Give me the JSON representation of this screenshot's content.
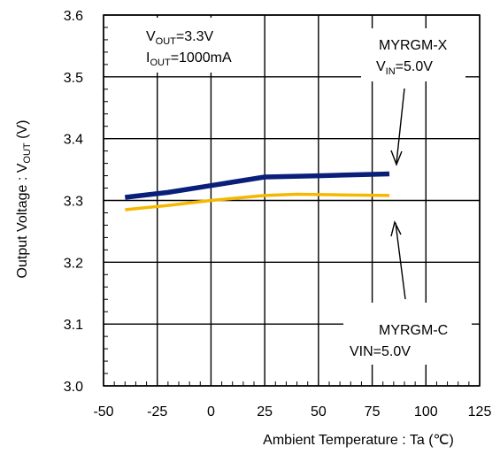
{
  "chart_data": {
    "type": "line",
    "xlabel": "Ambient Temperature : Ta (℃)",
    "ylabel": {
      "pre": "Output Voltage : V",
      "sub": "OUT",
      "post": " (V)"
    },
    "xlim": [
      -50,
      125
    ],
    "ylim": [
      3.0,
      3.6
    ],
    "x_ticks": [
      "-50",
      "-25",
      "0",
      "25",
      "50",
      "75",
      "100",
      "125"
    ],
    "y_ticks": [
      "3.0",
      "3.1",
      "3.2",
      "3.3",
      "3.4",
      "3.5",
      "3.6"
    ],
    "grid": true,
    "series": [
      {
        "name": "MYRGM-X",
        "color": "#0a1f7a",
        "x": [
          -40,
          -20,
          0,
          25,
          50,
          83
        ],
        "y": [
          3.305,
          3.313,
          3.324,
          3.338,
          3.34,
          3.343
        ]
      },
      {
        "name": "MYRGM-C",
        "color": "#f5b800",
        "x": [
          -40,
          -20,
          0,
          25,
          40,
          60,
          83
        ],
        "y": [
          3.285,
          3.292,
          3.3,
          3.308,
          3.31,
          3.309,
          3.308
        ]
      }
    ],
    "annotations": {
      "conditions": {
        "vout": {
          "pre": "V",
          "sub": "OUT",
          "post": "=3.3V"
        },
        "iout": {
          "pre": "I",
          "sub": "OUT",
          "post": "=1000mA"
        }
      },
      "label_x": {
        "name": "MYRGM-X",
        "vin": {
          "pre": "V",
          "sub": "IN",
          "post": "=5.0V"
        }
      },
      "label_c": {
        "name": "MYRGM-C",
        "vin": "VIN=5.0V"
      }
    }
  }
}
